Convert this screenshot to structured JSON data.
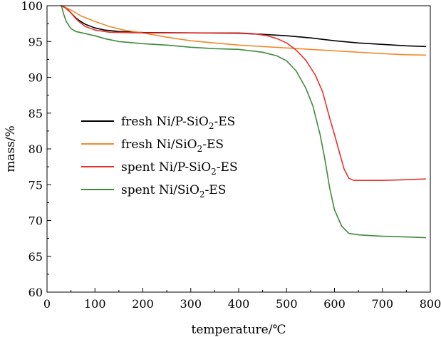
{
  "chart_data": {
    "type": "line",
    "xlabel": "temperature/℃",
    "ylabel": "mass/%",
    "xlim": [
      0,
      800
    ],
    "ylim": [
      60,
      100
    ],
    "xticks": [
      0,
      100,
      200,
      300,
      400,
      500,
      600,
      700,
      800
    ],
    "yticks": [
      60,
      65,
      70,
      75,
      80,
      85,
      90,
      95,
      100
    ],
    "grid": false,
    "legend_position": "center-left",
    "series": [
      {
        "name": "fresh Ni/P-SiO2-ES",
        "legend_parts": [
          "fresh Ni/P-SiO",
          "2",
          "-ES"
        ],
        "color": "#000000",
        "points": [
          [
            30,
            100
          ],
          [
            40,
            99.7
          ],
          [
            50,
            99.0
          ],
          [
            60,
            98.3
          ],
          [
            70,
            97.8
          ],
          [
            80,
            97.4
          ],
          [
            100,
            96.9
          ],
          [
            120,
            96.6
          ],
          [
            150,
            96.4
          ],
          [
            200,
            96.25
          ],
          [
            300,
            96.2
          ],
          [
            400,
            96.15
          ],
          [
            450,
            96.0
          ],
          [
            500,
            95.8
          ],
          [
            550,
            95.5
          ],
          [
            600,
            95.1
          ],
          [
            650,
            94.8
          ],
          [
            700,
            94.6
          ],
          [
            750,
            94.4
          ],
          [
            790,
            94.3
          ]
        ]
      },
      {
        "name": "fresh Ni/SiO2-ES",
        "legend_parts": [
          "fresh Ni/SiO",
          "2",
          "-ES"
        ],
        "color": "#f08a2c",
        "points": [
          [
            30,
            100
          ],
          [
            50,
            99.4
          ],
          [
            70,
            98.6
          ],
          [
            100,
            97.8
          ],
          [
            130,
            97.1
          ],
          [
            160,
            96.6
          ],
          [
            200,
            96.2
          ],
          [
            250,
            95.6
          ],
          [
            300,
            95.1
          ],
          [
            350,
            94.8
          ],
          [
            400,
            94.5
          ],
          [
            450,
            94.3
          ],
          [
            500,
            94.1
          ],
          [
            550,
            93.9
          ],
          [
            600,
            93.7
          ],
          [
            650,
            93.5
          ],
          [
            700,
            93.3
          ],
          [
            750,
            93.15
          ],
          [
            790,
            93.1
          ]
        ]
      },
      {
        "name": "spent Ni/P-SiO2-ES",
        "legend_parts": [
          "spent Ni/P-SiO",
          "2",
          "-ES"
        ],
        "color": "#e8312c",
        "points": [
          [
            30,
            100
          ],
          [
            40,
            99.6
          ],
          [
            50,
            99.0
          ],
          [
            60,
            98.2
          ],
          [
            70,
            97.6
          ],
          [
            80,
            97.1
          ],
          [
            100,
            96.6
          ],
          [
            130,
            96.3
          ],
          [
            200,
            96.2
          ],
          [
            300,
            96.2
          ],
          [
            400,
            96.2
          ],
          [
            430,
            96.1
          ],
          [
            460,
            95.8
          ],
          [
            480,
            95.4
          ],
          [
            500,
            94.8
          ],
          [
            520,
            93.8
          ],
          [
            540,
            92.4
          ],
          [
            560,
            90.3
          ],
          [
            575,
            88.0
          ],
          [
            590,
            84.3
          ],
          [
            600,
            82.0
          ],
          [
            610,
            79.6
          ],
          [
            620,
            77.2
          ],
          [
            630,
            75.9
          ],
          [
            640,
            75.6
          ],
          [
            660,
            75.6
          ],
          [
            700,
            75.6
          ],
          [
            750,
            75.7
          ],
          [
            790,
            75.8
          ]
        ]
      },
      {
        "name": "spent Ni/SiO2-ES",
        "legend_parts": [
          "spent Ni/SiO",
          "2",
          "-ES"
        ],
        "color": "#3f8a3c",
        "points": [
          [
            30,
            100
          ],
          [
            35,
            98.8
          ],
          [
            40,
            97.8
          ],
          [
            50,
            96.8
          ],
          [
            60,
            96.4
          ],
          [
            80,
            96.1
          ],
          [
            100,
            95.8
          ],
          [
            120,
            95.4
          ],
          [
            150,
            95.0
          ],
          [
            200,
            94.7
          ],
          [
            250,
            94.5
          ],
          [
            300,
            94.2
          ],
          [
            350,
            94.0
          ],
          [
            400,
            93.9
          ],
          [
            450,
            93.5
          ],
          [
            480,
            93.0
          ],
          [
            500,
            92.3
          ],
          [
            520,
            90.9
          ],
          [
            540,
            88.5
          ],
          [
            555,
            86.0
          ],
          [
            570,
            82.0
          ],
          [
            580,
            78.5
          ],
          [
            590,
            74.5
          ],
          [
            600,
            71.5
          ],
          [
            615,
            69.2
          ],
          [
            630,
            68.2
          ],
          [
            650,
            68.0
          ],
          [
            700,
            67.8
          ],
          [
            750,
            67.7
          ],
          [
            790,
            67.6
          ]
        ]
      }
    ]
  }
}
